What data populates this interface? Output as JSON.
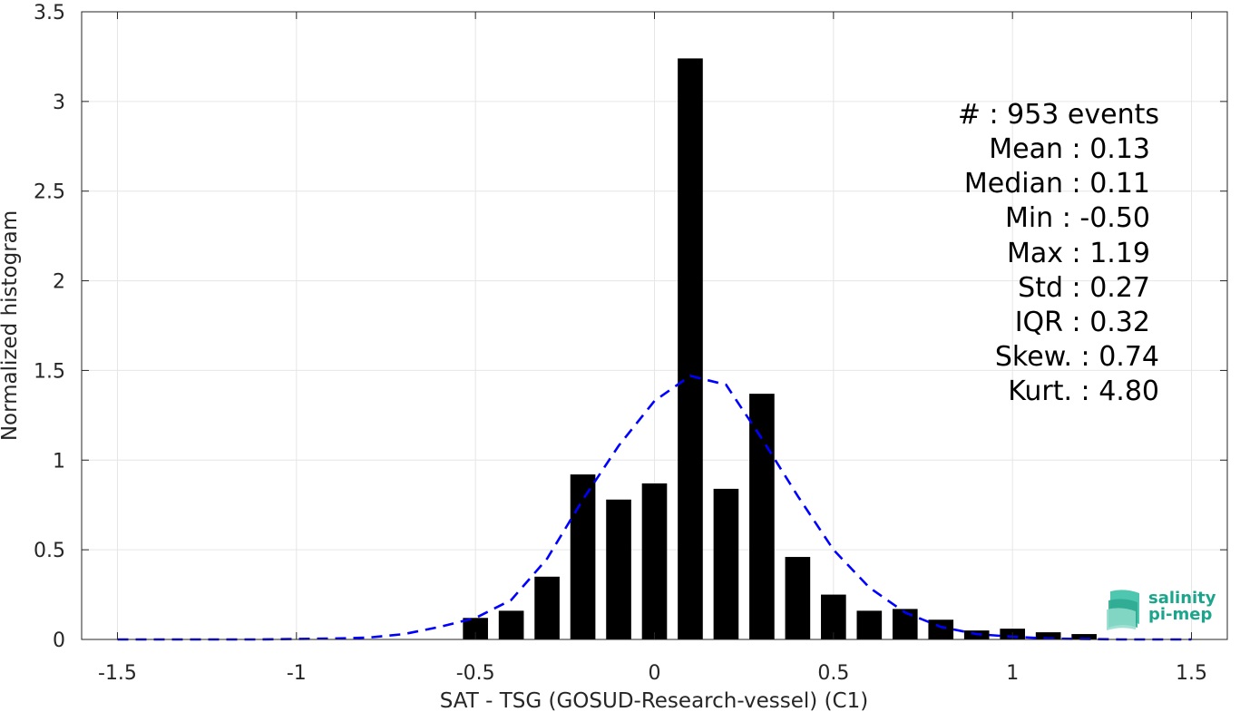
{
  "chart_data": {
    "type": "bar",
    "xlabel": "SAT - TSG (GOSUD-Research-vessel) (C1)",
    "ylabel": "Normalized histogram",
    "xlim": [
      -1.6,
      1.6
    ],
    "ylim": [
      0,
      3.5
    ],
    "xticks": [
      -1.5,
      -1,
      -0.5,
      0,
      0.5,
      1,
      1.5
    ],
    "xtick_labels": [
      "-1.5",
      "-1",
      "-0.5",
      "0",
      "0.5",
      "1",
      "1.5"
    ],
    "yticks": [
      0,
      0.5,
      1,
      1.5,
      2,
      2.5,
      3,
      3.5
    ],
    "ytick_labels": [
      "0",
      "0.5",
      "1",
      "1.5",
      "2",
      "2.5",
      "3",
      "3.5"
    ],
    "grid": true,
    "bar_width": 0.07,
    "bar_color": "#000000",
    "bars": [
      {
        "x": -0.5,
        "y": 0.12
      },
      {
        "x": -0.4,
        "y": 0.16
      },
      {
        "x": -0.3,
        "y": 0.35
      },
      {
        "x": -0.2,
        "y": 0.92
      },
      {
        "x": -0.1,
        "y": 0.78
      },
      {
        "x": 0.0,
        "y": 0.87
      },
      {
        "x": 0.1,
        "y": 3.24
      },
      {
        "x": 0.2,
        "y": 0.84
      },
      {
        "x": 0.3,
        "y": 1.37
      },
      {
        "x": 0.4,
        "y": 0.46
      },
      {
        "x": 0.5,
        "y": 0.25
      },
      {
        "x": 0.6,
        "y": 0.16
      },
      {
        "x": 0.7,
        "y": 0.17
      },
      {
        "x": 0.8,
        "y": 0.11
      },
      {
        "x": 0.9,
        "y": 0.05
      },
      {
        "x": 1.0,
        "y": 0.06
      },
      {
        "x": 1.1,
        "y": 0.04
      },
      {
        "x": 1.2,
        "y": 0.03
      }
    ],
    "fit_color": "#0000ff",
    "fit_curve": [
      {
        "x": -1.5,
        "y": 0.0
      },
      {
        "x": -1.3,
        "y": 0.0
      },
      {
        "x": -1.1,
        "y": 0.0
      },
      {
        "x": -0.9,
        "y": 0.005
      },
      {
        "x": -0.8,
        "y": 0.01
      },
      {
        "x": -0.7,
        "y": 0.03
      },
      {
        "x": -0.6,
        "y": 0.07
      },
      {
        "x": -0.5,
        "y": 0.12
      },
      {
        "x": -0.4,
        "y": 0.22
      },
      {
        "x": -0.3,
        "y": 0.45
      },
      {
        "x": -0.2,
        "y": 0.78
      },
      {
        "x": -0.1,
        "y": 1.08
      },
      {
        "x": 0.0,
        "y": 1.33
      },
      {
        "x": 0.1,
        "y": 1.47
      },
      {
        "x": 0.2,
        "y": 1.42
      },
      {
        "x": 0.3,
        "y": 1.12
      },
      {
        "x": 0.4,
        "y": 0.8
      },
      {
        "x": 0.5,
        "y": 0.5
      },
      {
        "x": 0.6,
        "y": 0.29
      },
      {
        "x": 0.7,
        "y": 0.15
      },
      {
        "x": 0.8,
        "y": 0.07
      },
      {
        "x": 0.9,
        "y": 0.03
      },
      {
        "x": 1.0,
        "y": 0.015
      },
      {
        "x": 1.1,
        "y": 0.005
      },
      {
        "x": 1.3,
        "y": 0.0
      },
      {
        "x": 1.5,
        "y": 0.0
      }
    ],
    "annotations": [
      "#  : 953 events",
      "Mean : 0.13",
      "Median : 0.11",
      "Min : -0.50",
      "Max : 1.19",
      "Std : 0.27",
      "IQR : 0.32",
      "Skew. : 0.74",
      "Kurt. : 4.80"
    ]
  },
  "logo": {
    "line1": "salinity",
    "line2": "pi-mep",
    "color": "#1aa58c"
  }
}
